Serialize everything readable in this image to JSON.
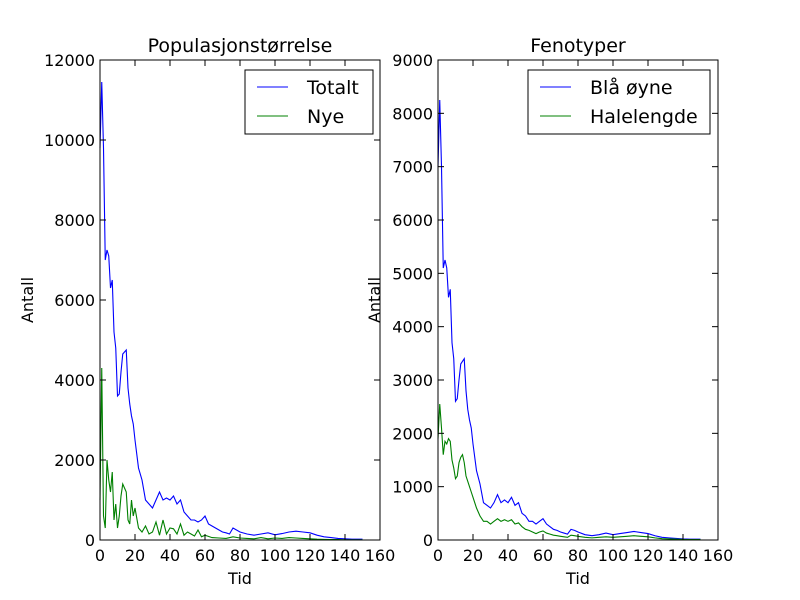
{
  "colors": {
    "blue": "#0000ff",
    "green": "#008000",
    "frame": "#000000",
    "background": "#ffffff"
  },
  "chart_data": [
    {
      "type": "line",
      "title": "Populasjonstørrelse",
      "xlabel": "Tid",
      "ylabel": "Antall",
      "xlim": [
        0,
        160
      ],
      "ylim": [
        0,
        12000
      ],
      "xticks": [
        "0",
        "20",
        "40",
        "60",
        "80",
        "100",
        "120",
        "140",
        "160"
      ],
      "yticks": [
        "0",
        "2000",
        "4000",
        "6000",
        "8000",
        "10000",
        "12000"
      ],
      "grid": false,
      "legend_position": "top-right",
      "series": [
        {
          "name": "Totalt",
          "color": "#0000ff",
          "x": [
            0,
            1,
            2,
            3,
            4,
            5,
            6,
            7,
            8,
            9,
            10,
            11,
            12,
            13,
            14,
            15,
            16,
            17,
            18,
            19,
            20,
            22,
            24,
            26,
            28,
            30,
            32,
            34,
            36,
            38,
            40,
            42,
            44,
            46,
            48,
            50,
            52,
            54,
            56,
            58,
            60,
            62,
            64,
            66,
            68,
            70,
            72,
            74,
            76,
            78,
            80,
            84,
            88,
            92,
            96,
            100,
            104,
            108,
            112,
            116,
            120,
            124,
            128,
            132,
            136,
            140,
            144,
            148,
            150
          ],
          "y": [
            9800,
            11450,
            9800,
            7000,
            7250,
            7100,
            6300,
            6500,
            5200,
            4800,
            3600,
            3650,
            4200,
            4650,
            4700,
            4750,
            3800,
            3400,
            3100,
            2900,
            2500,
            1800,
            1500,
            1000,
            900,
            800,
            1000,
            1200,
            1000,
            1050,
            1000,
            1100,
            900,
            1000,
            700,
            600,
            500,
            500,
            450,
            500,
            600,
            400,
            350,
            300,
            250,
            200,
            180,
            150,
            300,
            250,
            200,
            150,
            120,
            150,
            180,
            130,
            160,
            200,
            220,
            200,
            180,
            120,
            80,
            60,
            40,
            30,
            20,
            20,
            20
          ]
        },
        {
          "name": "Nye",
          "color": "#008000",
          "x": [
            0,
            1,
            2,
            3,
            4,
            5,
            6,
            7,
            8,
            9,
            10,
            11,
            12,
            13,
            14,
            15,
            16,
            17,
            18,
            19,
            20,
            22,
            24,
            26,
            28,
            30,
            32,
            34,
            36,
            38,
            40,
            42,
            44,
            46,
            48,
            50,
            52,
            54,
            56,
            58,
            60,
            64,
            68,
            72,
            76,
            80,
            84,
            88,
            92,
            96,
            100,
            104,
            108,
            112,
            116,
            120,
            124,
            128,
            132,
            136,
            140,
            144,
            148,
            150
          ],
          "y": [
            1000,
            4300,
            600,
            300,
            2000,
            1500,
            1200,
            1700,
            500,
            900,
            300,
            600,
            1100,
            1400,
            1300,
            1200,
            500,
            400,
            1000,
            600,
            800,
            300,
            200,
            350,
            150,
            200,
            450,
            120,
            500,
            150,
            300,
            280,
            150,
            400,
            120,
            200,
            150,
            100,
            250,
            80,
            120,
            60,
            50,
            40,
            80,
            50,
            40,
            30,
            60,
            30,
            50,
            40,
            60,
            50,
            40,
            30,
            20,
            15,
            10,
            10,
            5,
            5,
            5,
            5
          ]
        }
      ]
    },
    {
      "type": "line",
      "title": "Fenotyper",
      "xlabel": "Tid",
      "ylabel": "Antall",
      "xlim": [
        0,
        160
      ],
      "ylim": [
        0,
        9000
      ],
      "xticks": [
        "0",
        "20",
        "40",
        "60",
        "80",
        "100",
        "120",
        "140",
        "160"
      ],
      "yticks": [
        "0",
        "1000",
        "2000",
        "3000",
        "4000",
        "5000",
        "6000",
        "7000",
        "8000",
        "9000"
      ],
      "grid": false,
      "legend_position": "top-right",
      "series": [
        {
          "name": "Blå øyne",
          "color": "#0000ff",
          "x": [
            0,
            1,
            2,
            3,
            4,
            5,
            6,
            7,
            8,
            9,
            10,
            11,
            12,
            13,
            14,
            15,
            16,
            17,
            18,
            19,
            20,
            22,
            24,
            26,
            28,
            30,
            32,
            34,
            36,
            38,
            40,
            42,
            44,
            46,
            48,
            50,
            52,
            54,
            56,
            58,
            60,
            62,
            64,
            66,
            68,
            70,
            72,
            74,
            76,
            78,
            80,
            84,
            88,
            92,
            96,
            100,
            104,
            108,
            112,
            116,
            120,
            124,
            128,
            132,
            136,
            140,
            144,
            148,
            150
          ],
          "y": [
            7000,
            8250,
            7000,
            5100,
            5250,
            5100,
            4550,
            4700,
            3700,
            3400,
            2600,
            2650,
            3000,
            3300,
            3350,
            3400,
            2800,
            2450,
            2250,
            2100,
            1800,
            1300,
            1050,
            700,
            650,
            600,
            700,
            850,
            700,
            750,
            700,
            800,
            650,
            700,
            500,
            450,
            350,
            350,
            300,
            350,
            400,
            300,
            250,
            200,
            180,
            150,
            130,
            110,
            200,
            180,
            150,
            100,
            80,
            100,
            130,
            100,
            120,
            140,
            160,
            140,
            120,
            80,
            50,
            40,
            30,
            20,
            15,
            15,
            15
          ]
        },
        {
          "name": "Halelengde",
          "color": "#008000",
          "x": [
            0,
            1,
            2,
            3,
            4,
            5,
            6,
            7,
            8,
            9,
            10,
            11,
            12,
            13,
            14,
            15,
            16,
            17,
            18,
            19,
            20,
            22,
            24,
            26,
            28,
            30,
            32,
            34,
            36,
            38,
            40,
            42,
            44,
            46,
            48,
            50,
            52,
            54,
            56,
            58,
            60,
            62,
            64,
            66,
            68,
            70,
            72,
            74,
            76,
            78,
            80,
            84,
            88,
            92,
            96,
            100,
            104,
            108,
            112,
            116,
            120,
            124,
            128,
            132,
            136,
            140,
            144,
            148,
            150
          ],
          "y": [
            1900,
            2550,
            2100,
            1600,
            1850,
            1800,
            1900,
            1850,
            1500,
            1350,
            1150,
            1200,
            1450,
            1550,
            1600,
            1450,
            1200,
            1100,
            1000,
            900,
            800,
            600,
            450,
            350,
            350,
            300,
            350,
            400,
            350,
            380,
            350,
            380,
            300,
            320,
            250,
            200,
            180,
            150,
            120,
            150,
            170,
            130,
            110,
            90,
            80,
            70,
            60,
            50,
            90,
            80,
            70,
            50,
            40,
            50,
            60,
            50,
            60,
            70,
            80,
            70,
            60,
            40,
            25,
            20,
            15,
            10,
            8,
            8,
            8
          ]
        }
      ]
    }
  ]
}
